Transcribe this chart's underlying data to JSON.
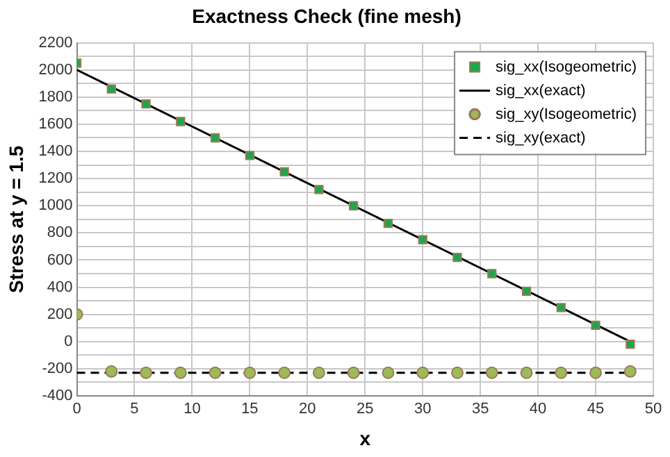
{
  "chart_data": {
    "type": "scatter",
    "title": "Exactness Check (fine mesh)",
    "xlabel": "x",
    "ylabel": "Stress at y = 1.5",
    "xlim": [
      0,
      50
    ],
    "xticks": [
      0,
      5,
      10,
      15,
      20,
      25,
      30,
      35,
      40,
      45,
      50
    ],
    "ylim": [
      -400,
      2200
    ],
    "yticks": [
      -400,
      {
        "value": -300,
        "label": null
      },
      -200,
      {
        "value": -100,
        "label": null
      },
      0,
      {
        "value": 100,
        "label": null
      },
      200,
      {
        "value": 300,
        "label": null
      },
      400,
      {
        "value": 500,
        "label": null
      },
      600,
      {
        "value": 700,
        "label": null
      },
      800,
      {
        "value": 900,
        "label": null
      },
      1000,
      {
        "value": 1100,
        "label": null
      },
      1200,
      {
        "value": 1300,
        "label": null
      },
      1400,
      {
        "value": 1500,
        "label": null
      },
      1600,
      {
        "value": 1700,
        "label": null
      },
      1800,
      {
        "value": 1900,
        "label": null
      },
      2000,
      {
        "value": 2100,
        "label": null
      },
      2200
    ],
    "grid": true,
    "legend": "top right",
    "series": [
      {
        "name": "sig_xx(Isogeometric)",
        "marker": "square",
        "color": "#1aa84a",
        "x": [
          0,
          3,
          6,
          9,
          12,
          15,
          18,
          21,
          24,
          27,
          30,
          33,
          36,
          39,
          42,
          45,
          48
        ],
        "values": [
          2050,
          1860,
          1750,
          1620,
          1500,
          1370,
          1250,
          1120,
          1000,
          870,
          750,
          620,
          500,
          370,
          250,
          120,
          -20
        ]
      },
      {
        "name": "sig_xx(exact)",
        "type": "line",
        "marker": "none",
        "line_style": "solid",
        "color": "#000000",
        "x": [
          0,
          48
        ],
        "values": [
          2000,
          0
        ]
      },
      {
        "name": "sig_xy(Isogeometric)",
        "marker": "circle",
        "color": "#9bbb59",
        "x": [
          0,
          3,
          6,
          9,
          12,
          15,
          18,
          21,
          24,
          27,
          30,
          33,
          36,
          39,
          42,
          45,
          48
        ],
        "values": [
          200,
          -220,
          -230,
          -230,
          -230,
          -230,
          -230,
          -230,
          -230,
          -230,
          -230,
          -230,
          -230,
          -230,
          -230,
          -230,
          -220
        ]
      },
      {
        "name": "sig_xy(exact)",
        "type": "line",
        "marker": "none",
        "line_style": "dashed",
        "color": "#000000",
        "x": [
          0,
          48
        ],
        "values": [
          -230,
          -230
        ]
      }
    ]
  }
}
